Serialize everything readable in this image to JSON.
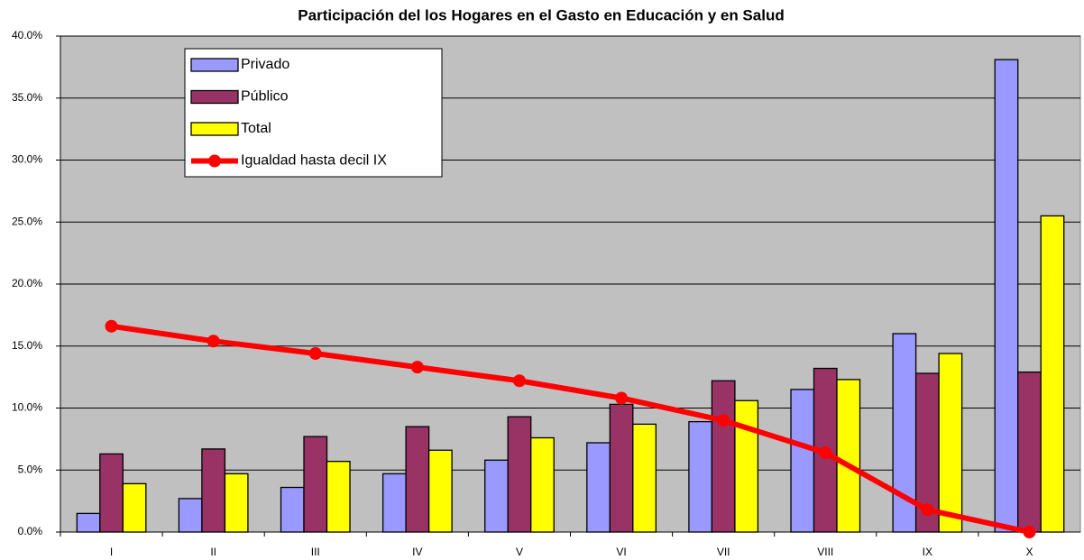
{
  "chart_data": {
    "type": "bar",
    "title": "Participación del los Hogares en el Gasto en Educación y en Salud",
    "categories": [
      "I",
      "II",
      "III",
      "IV",
      "V",
      "VI",
      "VII",
      "VIII",
      "IX",
      "X"
    ],
    "series": [
      {
        "name": "Privado",
        "type": "bar",
        "color": "#9999ff",
        "values": [
          1.5,
          2.7,
          3.6,
          4.7,
          5.8,
          7.2,
          8.9,
          11.5,
          16.0,
          38.1
        ]
      },
      {
        "name": "Público",
        "type": "bar",
        "color": "#993366",
        "values": [
          6.3,
          6.7,
          7.7,
          8.5,
          9.3,
          10.3,
          12.2,
          13.2,
          12.8,
          12.9
        ]
      },
      {
        "name": "Total",
        "type": "bar",
        "color": "#ffff00",
        "values": [
          3.9,
          4.7,
          5.7,
          6.6,
          7.6,
          8.7,
          10.6,
          12.3,
          14.4,
          25.5
        ]
      },
      {
        "name": "Igualdad hasta decil IX",
        "type": "line",
        "color": "#ff0000",
        "values": [
          16.6,
          15.4,
          14.4,
          13.3,
          12.2,
          10.8,
          9.0,
          6.4,
          1.8,
          0.0
        ]
      }
    ],
    "ylim": [
      0,
      40
    ],
    "yticks": [
      {
        "value": 0,
        "label": "0.0%"
      },
      {
        "value": 5,
        "label": "5.0%"
      },
      {
        "value": 10,
        "label": "10.0%"
      },
      {
        "value": 15,
        "label": "15.0%"
      },
      {
        "value": 20,
        "label": "20.0%"
      },
      {
        "value": 25,
        "label": "25.0%"
      },
      {
        "value": 30,
        "label": "30.0%"
      },
      {
        "value": 35,
        "label": "35.0%"
      },
      {
        "value": 40,
        "label": "40.0%"
      }
    ],
    "grid": true
  }
}
